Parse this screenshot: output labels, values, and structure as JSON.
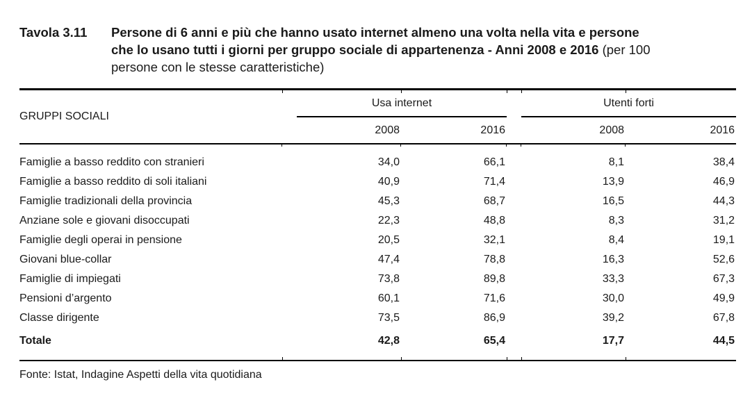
{
  "title": {
    "label": "Tavola 3.11",
    "lines": [
      [
        {
          "text": "Persone di 6 anni e più che hanno usato internet almeno una volta nella vita e persone",
          "bold": true
        }
      ],
      [
        {
          "text": "che lo usano tutti i giorni per gruppo sociale di appartenenza - Anni 2008 e 2016",
          "bold": true
        },
        {
          "text": " (per 100",
          "bold": false
        }
      ],
      [
        {
          "text": "persone con le stesse caratteristiche)",
          "bold": false
        }
      ]
    ]
  },
  "table": {
    "row_header": "GRUPPI SOCIALI",
    "groups": [
      {
        "label": "Usa internet",
        "years": [
          "2008",
          "2016"
        ]
      },
      {
        "label": "Utenti forti",
        "years": [
          "2008",
          "2016"
        ]
      }
    ],
    "rows": [
      {
        "label": "Famiglie a basso reddito con stranieri",
        "values": [
          "34,0",
          "66,1",
          "8,1",
          "38,4"
        ]
      },
      {
        "label": "Famiglie a basso reddito di soli italiani",
        "values": [
          "40,9",
          "71,4",
          "13,9",
          "46,9"
        ]
      },
      {
        "label": "Famiglie tradizionali della provincia",
        "values": [
          "45,3",
          "68,7",
          "16,5",
          "44,3"
        ]
      },
      {
        "label": "Anziane sole e giovani disoccupati",
        "values": [
          "22,3",
          "48,8",
          "8,3",
          "31,2"
        ]
      },
      {
        "label": "Famiglie degli operai in pensione",
        "values": [
          "20,5",
          "32,1",
          "8,4",
          "19,1"
        ]
      },
      {
        "label": "Giovani blue-collar",
        "values": [
          "47,4",
          "78,8",
          "16,3",
          "52,6"
        ]
      },
      {
        "label": "Famiglie di impiegati",
        "values": [
          "73,8",
          "89,8",
          "33,3",
          "67,3"
        ]
      },
      {
        "label": "Pensioni d’argento",
        "values": [
          "60,1",
          "71,6",
          "30,0",
          "49,9"
        ]
      },
      {
        "label": "Classe dirigente",
        "values": [
          "73,5",
          "86,9",
          "39,2",
          "67,8"
        ]
      }
    ],
    "total": {
      "label": "Totale",
      "values": [
        "42,8",
        "65,4",
        "17,7",
        "44,5"
      ]
    }
  },
  "footer": {
    "source": "Fonte: Istat, Indagine Aspetti della vita quotidiana"
  },
  "colors": {
    "text": "#1a1a1a",
    "rule": "#000000",
    "background": "#ffffff"
  }
}
